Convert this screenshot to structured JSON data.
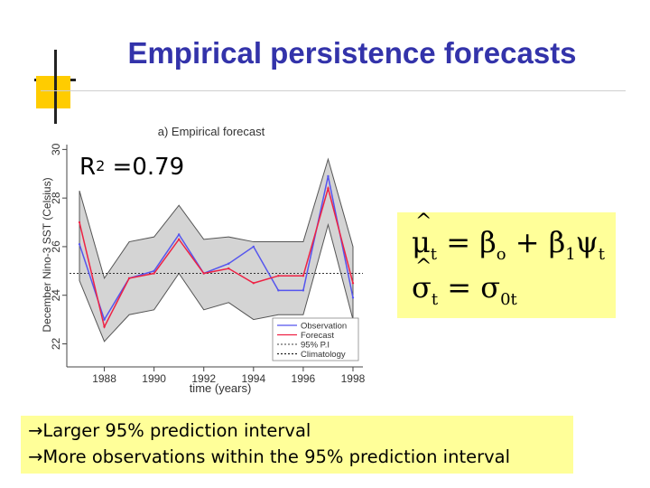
{
  "slide": {
    "title": "Empirical persistence forecasts",
    "r2_label": "R",
    "r2_exp": "2",
    "r2_value": " =0.79",
    "colors": {
      "title": "#3333aa",
      "box_fill": "#ffff99",
      "observation": "#5555ee",
      "forecast": "#ee2244",
      "band": "#d4d4d4"
    }
  },
  "formula": {
    "line1": {
      "lhs": "μ",
      "lhs_sub": "t",
      "eq": " = ",
      "b0": "β",
      "b0_sub": "o",
      "plus": " + ",
      "b1": "β",
      "b1_sub": "1",
      "psi": "ψ",
      "psi_sub": "t"
    },
    "line2": {
      "lhs": "σ",
      "lhs_sub": "t",
      "eq": " = ",
      "rhs": "σ",
      "rhs_sub": "0t"
    }
  },
  "notes": [
    "→Larger 95% prediction interval",
    "→More observations within the 95% prediction interval"
  ],
  "chart_data": {
    "type": "line",
    "title": "a) Empirical forecast",
    "xlabel": "time (years)",
    "ylabel": "December Nino-3 SST (Celsius)",
    "x": [
      1987,
      1988,
      1989,
      1990,
      1991,
      1992,
      1993,
      1994,
      1995,
      1996,
      1997,
      1998
    ],
    "x_ticks": [
      1988,
      1990,
      1992,
      1994,
      1996,
      1998
    ],
    "y_ticks": [
      22,
      24,
      26,
      28,
      30
    ],
    "xlim": [
      1986.6,
      1998.4
    ],
    "ylim": [
      21.2,
      30.2
    ],
    "climatology": 24.9,
    "series": [
      {
        "name": "Observation",
        "values": [
          26.1,
          23.0,
          24.7,
          25.0,
          26.5,
          24.9,
          25.3,
          26.0,
          24.2,
          24.2,
          28.9,
          23.9
        ]
      },
      {
        "name": "Forecast",
        "values": [
          27.0,
          22.7,
          24.7,
          24.9,
          26.3,
          24.9,
          25.1,
          24.5,
          24.8,
          24.8,
          28.4,
          24.5
        ]
      }
    ],
    "pi_upper": [
      28.3,
      24.7,
      26.2,
      26.4,
      27.7,
      26.3,
      26.4,
      26.2,
      26.2,
      26.2,
      29.6,
      26.0
    ],
    "pi_lower": [
      24.6,
      22.1,
      23.2,
      23.4,
      24.9,
      23.4,
      23.7,
      23.0,
      23.2,
      23.2,
      26.9,
      23.0
    ],
    "legend": {
      "position": "bottom-right",
      "entries": [
        "Observation",
        "Forecast",
        "95% P.I",
        "Climatology"
      ]
    }
  }
}
